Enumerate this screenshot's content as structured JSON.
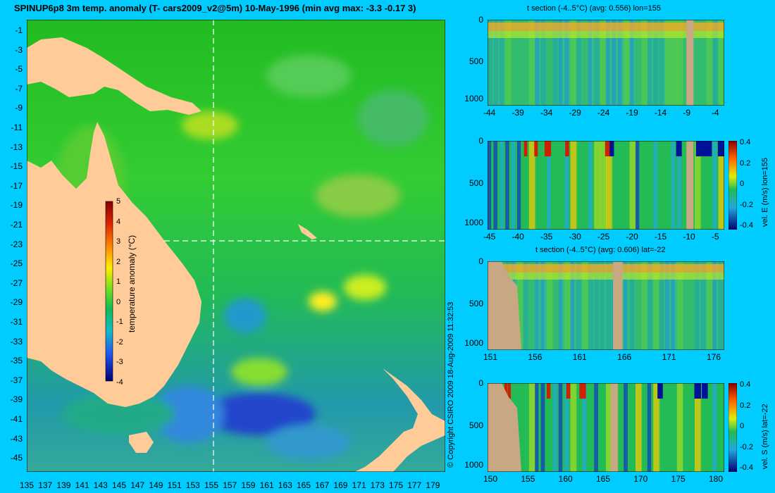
{
  "title": "SPINUP6p8 3m temp. anomaly (T- cars2009_v2@5m) 10-May-1996 (min avg max: -3.3 -0.17 3)",
  "copyright": "© Copyright CSIRO 2009   18-Aug-2009 11:32:53",
  "map": {
    "x_ticks": [
      "135",
      "137",
      "139",
      "141",
      "143",
      "145",
      "147",
      "149",
      "151",
      "153",
      "155",
      "157",
      "159",
      "161",
      "163",
      "165",
      "167",
      "169",
      "171",
      "173",
      "175",
      "177",
      "179"
    ],
    "y_ticks": [
      "-1",
      "-3",
      "-5",
      "-7",
      "-9",
      "-11",
      "-13",
      "-15",
      "-17",
      "-19",
      "-21",
      "-23",
      "-25",
      "-27",
      "-29",
      "-31",
      "-33",
      "-35",
      "-37",
      "-39",
      "-41",
      "-43",
      "-45"
    ],
    "colorbar": {
      "label": "temperature anomaly (°C)",
      "ticks": [
        "5",
        "4",
        "3",
        "2",
        "1",
        "0",
        "-1",
        "-2",
        "-3",
        "-4"
      ],
      "range": [
        -4,
        5
      ]
    },
    "section_lines": {
      "lon": 155,
      "lat": -22
    }
  },
  "panels": [
    {
      "title": "t section (-4..5°C) (avg: 0.556) lon=155",
      "x_ticks": [
        "-44",
        "-39",
        "-34",
        "-29",
        "-24",
        "-19",
        "-14",
        "-9",
        "-4"
      ],
      "y_ticks": [
        "0",
        "500",
        "1000"
      ],
      "colorbar": null
    },
    {
      "title": "",
      "x_ticks": [
        "-45",
        "-40",
        "-35",
        "-30",
        "-25",
        "-20",
        "-15",
        "-10",
        "-5"
      ],
      "y_ticks": [
        "0",
        "500",
        "1000"
      ],
      "colorbar": {
        "label": "vel. E (m/s) lon=155",
        "ticks": [
          "0.4",
          "0.2",
          "0",
          "-0.2",
          "-0.4"
        ]
      }
    },
    {
      "title": "t section (-4..5°C) (avg: 0.606) lat=-22",
      "x_ticks": [
        "151",
        "156",
        "161",
        "166",
        "171",
        "176"
      ],
      "y_ticks": [
        "0",
        "500",
        "1000"
      ],
      "colorbar": null
    },
    {
      "title": "",
      "x_ticks": [
        "150",
        "155",
        "160",
        "165",
        "170",
        "175",
        "180"
      ],
      "y_ticks": [
        "0",
        "500",
        "1000"
      ],
      "colorbar": {
        "label": "vel. S (m/s) lat=-22",
        "ticks": [
          "0.4",
          "0.2",
          "0",
          "-0.2",
          "-0.4"
        ]
      }
    }
  ],
  "colors": {
    "background": "#00ccff",
    "land": "#ffcc99",
    "section_land": "#c8a882",
    "ocean_base": "#33bb33"
  }
}
